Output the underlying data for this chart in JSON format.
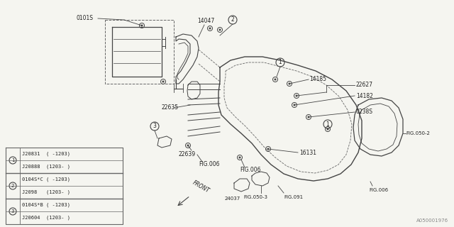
{
  "bg_color": "#f5f5f0",
  "figure_code": "A050001976",
  "legend": {
    "circle1": [
      "J20831  ( -1203)",
      "J20888  (1203- )"
    ],
    "circle2": [
      "0104S*C ( -1203)",
      "J2098   (1203- )"
    ],
    "circle3": [
      "0104S*B ( -1203)",
      "J20604  (1203- )"
    ]
  },
  "line_color": "#444444",
  "text_color": "#222222",
  "legend_border": "#666666",
  "dashed_color": "#666666"
}
